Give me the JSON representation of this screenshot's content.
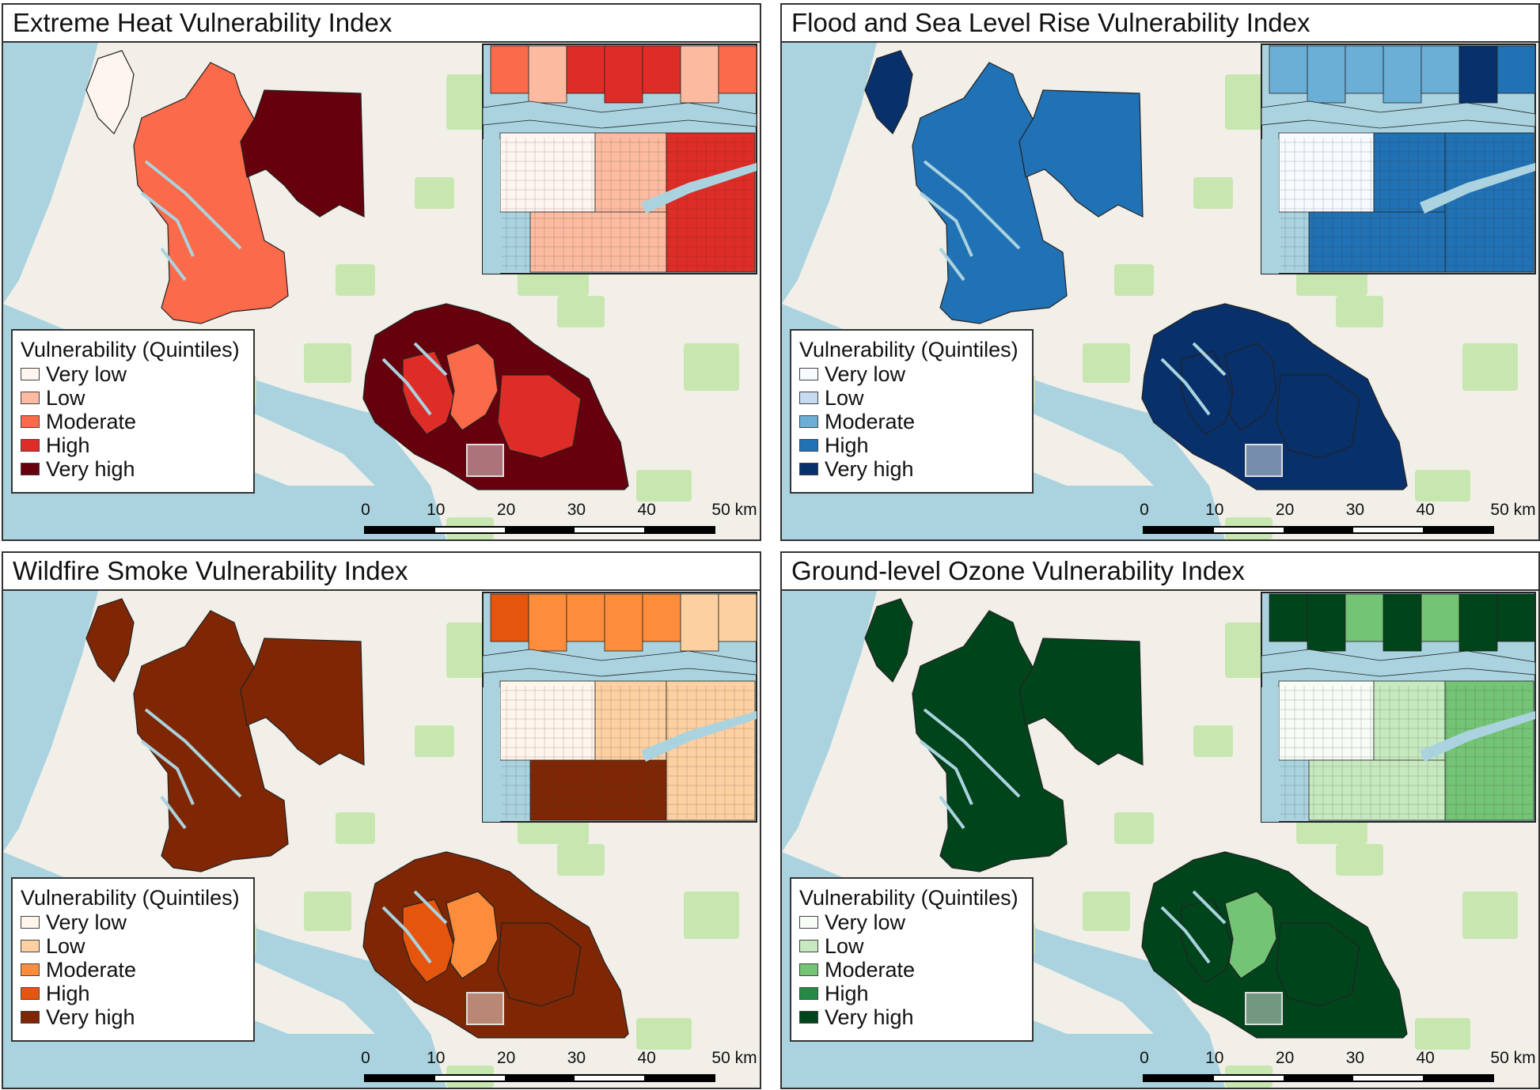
{
  "legend_title": "Vulnerability (Quintiles)",
  "categories": [
    "Very low",
    "Low",
    "Moderate",
    "High",
    "Very high"
  ],
  "scale": {
    "labels": [
      "0",
      "10",
      "20",
      "30",
      "40",
      "50 km"
    ]
  },
  "basemap_colors": {
    "water": "#aad3df",
    "land": "#f2efe9",
    "forest": "#c8e6b0"
  },
  "panels": [
    {
      "title": "Extreme Heat Vulnerability Index",
      "palette": [
        "#fff5f0",
        "#fcbba1",
        "#fb6a4a",
        "#de2d26",
        "#67000d"
      ],
      "region_levels": {
        "north_island": 0,
        "north_west": 2,
        "north_east": 4,
        "south_west": 3,
        "south_mid": 2,
        "south_east": 3,
        "south_base": 4
      },
      "inset_levels": {
        "top": [
          2,
          1,
          3,
          3,
          3,
          1,
          2
        ],
        "west": 0,
        "mid": 1,
        "east": 3,
        "south": 1
      }
    },
    {
      "title": "Flood and Sea Level Rise Vulnerability Index",
      "palette": [
        "#f7fbff",
        "#c6dbef",
        "#6baed6",
        "#2171b5",
        "#08306b"
      ],
      "region_levels": {
        "north_island": 4,
        "north_west": 3,
        "north_east": 3,
        "south_west": 4,
        "south_mid": 4,
        "south_east": 4,
        "south_base": 4
      },
      "inset_levels": {
        "top": [
          2,
          2,
          2,
          2,
          2,
          4,
          3
        ],
        "west": 0,
        "mid": 3,
        "east": 3,
        "south": 3
      }
    },
    {
      "title": "Wildfire Smoke Vulnerability Index",
      "palette": [
        "#fff5eb",
        "#fdd0a2",
        "#fd8d3c",
        "#e6550d",
        "#7f2704"
      ],
      "region_levels": {
        "north_island": 4,
        "north_west": 4,
        "north_east": 4,
        "south_west": 3,
        "south_mid": 2,
        "south_east": 4,
        "south_base": 4
      },
      "inset_levels": {
        "top": [
          3,
          2,
          2,
          2,
          2,
          1,
          1
        ],
        "west": 0,
        "mid": 1,
        "east": 1,
        "south": 4
      }
    },
    {
      "title": "Ground-level Ozone Vulnerability Index",
      "palette": [
        "#f7fcf5",
        "#c7e9c0",
        "#74c476",
        "#238b45",
        "#00441b"
      ],
      "region_levels": {
        "north_island": 4,
        "north_west": 4,
        "north_east": 4,
        "south_west": 4,
        "south_mid": 2,
        "south_east": 4,
        "south_base": 4
      },
      "inset_levels": {
        "top": [
          4,
          4,
          2,
          4,
          2,
          4,
          4
        ],
        "west": 0,
        "mid": 1,
        "east": 2,
        "south": 1
      }
    }
  ]
}
